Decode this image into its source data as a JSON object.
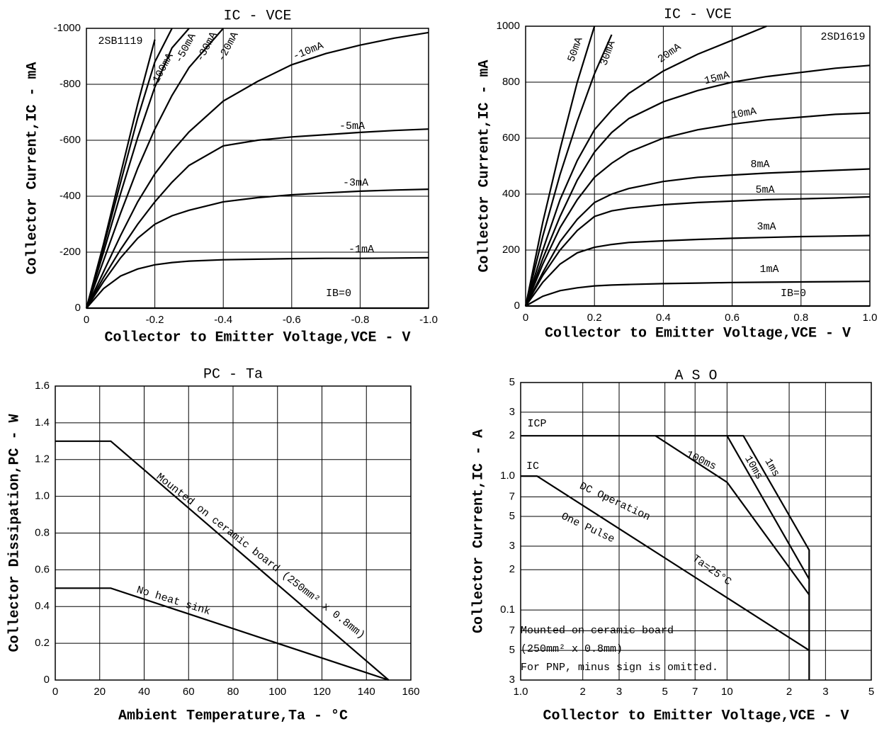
{
  "chart_data": [
    {
      "type": "line",
      "title": "IC - VCE",
      "xlabel": "Collector to Emitter Voltage,VCE - V",
      "ylabel": "Collector Current,IC - mA",
      "xlim": [
        0,
        -1
      ],
      "ylim": [
        0,
        -1000
      ],
      "xticks": [
        0,
        -0.2,
        -0.4,
        -0.6,
        -0.8,
        {
          "value": -1,
          "label": "-1.0"
        }
      ],
      "yticks": [
        0,
        -200,
        -400,
        -600,
        -800,
        -1000
      ],
      "grid": true,
      "color": "#000000",
      "annotations": [
        {
          "text": "2SB1119"
        }
      ],
      "x": [
        0,
        -0.05,
        -0.1,
        -0.15,
        -0.2,
        -0.25,
        -0.3,
        -0.4,
        -0.5,
        -0.6,
        -0.7,
        -0.8,
        -0.9,
        -1.0
      ],
      "series": [
        {
          "name": "-100mA",
          "values": [
            0,
            -230,
            -480,
            -730,
            -960,
            null,
            null,
            null,
            null,
            null,
            null,
            null,
            null,
            null
          ]
        },
        {
          "name": "-50mA",
          "values": [
            0,
            -220,
            -450,
            -680,
            -880,
            -1000,
            null,
            null,
            null,
            null,
            null,
            null,
            null,
            null
          ]
        },
        {
          "name": "-30mA",
          "values": [
            0,
            -200,
            -410,
            -610,
            -790,
            -930,
            -1000,
            null,
            null,
            null,
            null,
            null,
            null,
            null
          ]
        },
        {
          "name": "-20mA",
          "values": [
            0,
            -170,
            -340,
            -500,
            -640,
            -760,
            -860,
            -1000,
            null,
            null,
            null,
            null,
            null,
            null
          ]
        },
        {
          "name": "-10mA",
          "values": [
            0,
            -130,
            -260,
            -380,
            -480,
            -560,
            -630,
            -740,
            -810,
            -870,
            -910,
            -940,
            -965,
            -985
          ]
        },
        {
          "name": "-5mA",
          "values": [
            0,
            -110,
            -210,
            -300,
            -380,
            -450,
            -510,
            -580,
            -600,
            -612,
            -620,
            -628,
            -635,
            -640
          ]
        },
        {
          "name": "-3mA",
          "values": [
            0,
            -95,
            -180,
            -250,
            -300,
            -330,
            -350,
            -380,
            -395,
            -405,
            -412,
            -418,
            -422,
            -425
          ]
        },
        {
          "name": "-1mA",
          "values": [
            0,
            -70,
            -115,
            -140,
            -155,
            -163,
            -168,
            -173,
            -175,
            -177,
            -178,
            -178,
            -179,
            -180
          ]
        },
        {
          "name": "IB=0",
          "values": [
            0,
            0,
            0,
            0,
            0,
            0,
            0,
            0,
            0,
            0,
            0,
            0,
            0,
            0
          ]
        }
      ]
    },
    {
      "type": "line",
      "title": "IC - VCE",
      "xlabel": "Collector to Emitter Voltage,VCE - V",
      "ylabel": "Collector Current,IC - mA",
      "xlim": [
        0,
        1
      ],
      "ylim": [
        0,
        1000
      ],
      "xticks": [
        0,
        0.2,
        0.4,
        0.6,
        0.8,
        {
          "value": 1,
          "label": "1.0"
        }
      ],
      "yticks": [
        0,
        200,
        400,
        600,
        800,
        1000
      ],
      "grid": true,
      "color": "#000000",
      "annotations": [
        {
          "text": "2SD1619"
        }
      ],
      "x": [
        0,
        0.05,
        0.1,
        0.15,
        0.2,
        0.25,
        0.3,
        0.4,
        0.5,
        0.6,
        0.7,
        0.8,
        0.9,
        1.0
      ],
      "series": [
        {
          "name": "50mA",
          "values": [
            0,
            300,
            560,
            800,
            1000,
            null,
            null,
            null,
            null,
            null,
            null,
            null,
            null,
            null
          ]
        },
        {
          "name": "30mA",
          "values": [
            0,
            250,
            470,
            660,
            830,
            970,
            null,
            null,
            null,
            null,
            null,
            null,
            null,
            null
          ]
        },
        {
          "name": "20mA",
          "values": [
            0,
            200,
            380,
            520,
            630,
            700,
            760,
            840,
            900,
            950,
            1000,
            null,
            null,
            null
          ]
        },
        {
          "name": "15mA",
          "values": [
            0,
            170,
            320,
            450,
            550,
            620,
            670,
            730,
            770,
            800,
            820,
            835,
            850,
            860
          ]
        },
        {
          "name": "10mA",
          "values": [
            0,
            150,
            280,
            380,
            460,
            510,
            550,
            600,
            630,
            650,
            665,
            675,
            685,
            690
          ]
        },
        {
          "name": "8mA",
          "values": [
            0,
            120,
            230,
            310,
            370,
            400,
            420,
            445,
            460,
            468,
            475,
            480,
            485,
            490
          ]
        },
        {
          "name": "5mA",
          "values": [
            0,
            110,
            200,
            270,
            320,
            340,
            350,
            362,
            370,
            375,
            380,
            383,
            386,
            390
          ]
        },
        {
          "name": "3mA",
          "values": [
            0,
            85,
            150,
            190,
            210,
            220,
            227,
            233,
            238,
            242,
            245,
            248,
            250,
            252
          ]
        },
        {
          "name": "1mA",
          "values": [
            0,
            35,
            55,
            65,
            72,
            75,
            77,
            80,
            82,
            84,
            85,
            86,
            87,
            88
          ]
        },
        {
          "name": "IB=0",
          "values": [
            0,
            0,
            0,
            0,
            0,
            0,
            0,
            0,
            0,
            0,
            0,
            0,
            0,
            0
          ]
        }
      ]
    },
    {
      "type": "line",
      "title": "PC - Ta",
      "xlabel": "Ambient Temperature,Ta - °C",
      "ylabel": "Collector Dissipation,PC - W",
      "xlim": [
        0,
        160
      ],
      "ylim": [
        0,
        1.6
      ],
      "xticks": [
        0,
        20,
        40,
        60,
        80,
        100,
        120,
        140,
        160
      ],
      "yticks": [
        0,
        0.2,
        0.4,
        0.6,
        0.8,
        {
          "value": 1,
          "label": "1.0"
        },
        1.2,
        1.4,
        1.6
      ],
      "grid": true,
      "color": "#000000",
      "x": [
        0,
        25,
        150
      ],
      "series": [
        {
          "name": "Mounted on ceramic board (250mm² x 0.8mm)",
          "values": [
            1.3,
            1.3,
            0
          ]
        },
        {
          "name": "No heat sink",
          "values": [
            0.5,
            0.5,
            0
          ]
        }
      ]
    },
    {
      "type": "line",
      "title": "A S O",
      "xlabel": "Collector to Emitter Voltage,VCE - V",
      "ylabel": "Collector Current,IC - A",
      "xscale": "log",
      "yscale": "log",
      "xlim": [
        1,
        50
      ],
      "ylim": [
        0.03,
        5
      ],
      "xticks": [
        {
          "value": 1,
          "label": "1.0"
        },
        2,
        3,
        5,
        7,
        10,
        {
          "value": 20,
          "label": "2"
        },
        {
          "value": 30,
          "label": "3"
        },
        {
          "value": 50,
          "label": "5"
        }
      ],
      "yticks": [
        {
          "value": 0.03,
          "label": "3"
        },
        {
          "value": 0.05,
          "label": "5"
        },
        {
          "value": 0.07,
          "label": "7"
        },
        0.1,
        {
          "value": 0.2,
          "label": "2"
        },
        {
          "value": 0.3,
          "label": "3"
        },
        {
          "value": 0.5,
          "label": "5"
        },
        {
          "value": 0.7,
          "label": "7"
        },
        {
          "value": 1,
          "label": "1.0"
        },
        {
          "value": 2,
          "label": "2"
        },
        {
          "value": 3,
          "label": "3"
        },
        {
          "value": 5,
          "label": "5"
        }
      ],
      "grid": true,
      "color": "#000000",
      "annotations": [
        {
          "text": "ICP"
        },
        {
          "text": "IC"
        },
        {
          "text": "One Pulse"
        },
        {
          "text": "Ta=25°C"
        },
        {
          "text": "Mounted on ceramic board"
        },
        {
          "text": "(250mm² x 0.8mm)"
        },
        {
          "text": "For PNP, minus sign is omitted."
        }
      ],
      "series": [
        {
          "name": "1ms",
          "x": [
            1,
            12,
            25,
            25
          ],
          "values": [
            2,
            2,
            0.28,
            0.03
          ]
        },
        {
          "name": "10ms",
          "x": [
            10,
            25
          ],
          "values": [
            2,
            0.17
          ]
        },
        {
          "name": "100ms",
          "x": [
            4.5,
            10,
            25
          ],
          "values": [
            2,
            0.9,
            0.13
          ]
        },
        {
          "name": "DC Operation",
          "x": [
            1,
            1.2,
            25
          ],
          "values": [
            1,
            1,
            0.05
          ]
        }
      ]
    }
  ]
}
